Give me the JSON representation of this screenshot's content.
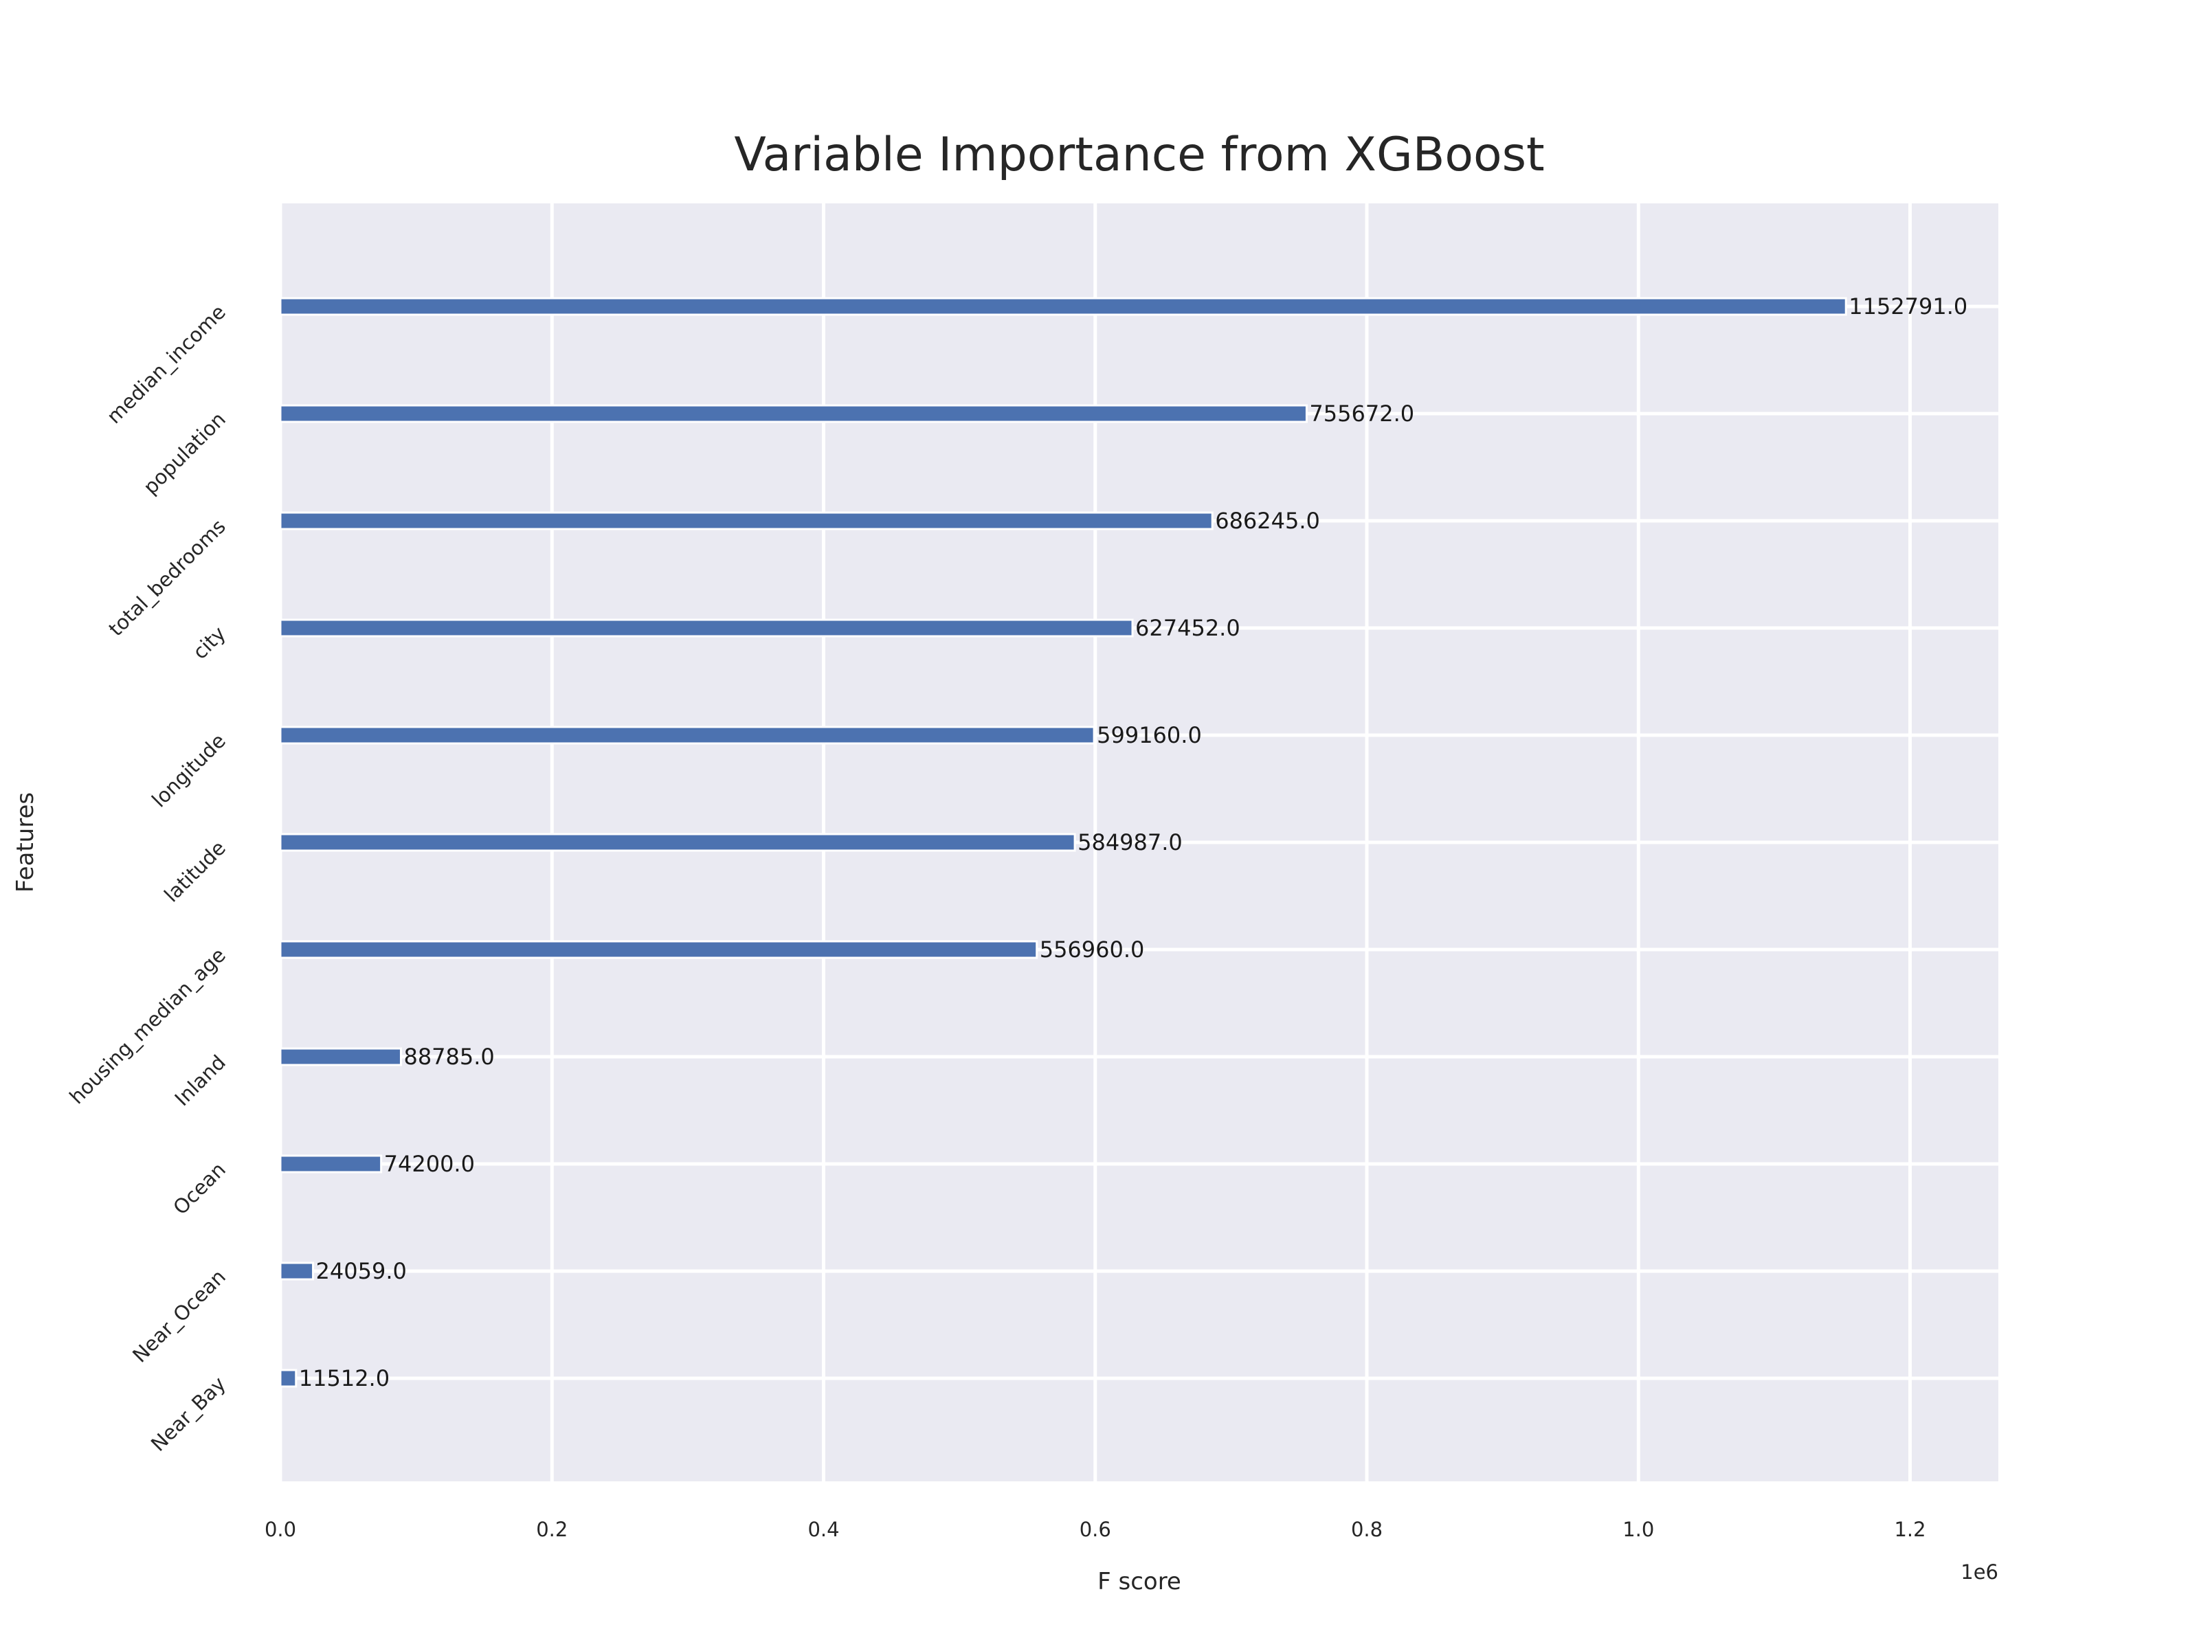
{
  "chart_data": {
    "type": "bar",
    "orientation": "horizontal",
    "title": "Variable Importance from XGBoost",
    "xlabel": "F score",
    "ylabel": "Features",
    "x_offset_text": "1e6",
    "x_scale_multiplier": 1000000,
    "xlim": [
      0,
      1.265
    ],
    "x_ticks": [
      {
        "value": 0.0,
        "label": "0.0"
      },
      {
        "value": 0.2,
        "label": "0.2"
      },
      {
        "value": 0.4,
        "label": "0.4"
      },
      {
        "value": 0.6,
        "label": "0.6"
      },
      {
        "value": 0.8,
        "label": "0.8"
      },
      {
        "value": 1.0,
        "label": "1.0"
      },
      {
        "value": 1.2,
        "label": "1.2"
      }
    ],
    "grid": true,
    "background_color": "#eaeaf2",
    "grid_color": "#ffffff",
    "bar_color": "#4c72b0",
    "categories": [
      "median_income",
      "population",
      "total_bedrooms",
      "city",
      "longitude",
      "latitude",
      "housing_median_age",
      "Inland",
      "Ocean",
      "Near_Ocean",
      "Near_Bay"
    ],
    "values": [
      1152791.0,
      755672.0,
      686245.0,
      627452.0,
      599160.0,
      584987.0,
      556960.0,
      88785.0,
      74200.0,
      24059.0,
      11512.0
    ],
    "value_labels": [
      "1152791.0",
      "755672.0",
      "686245.0",
      "627452.0",
      "599160.0",
      "584987.0",
      "556960.0",
      "88785.0",
      "74200.0",
      "24059.0",
      "11512.0"
    ]
  }
}
